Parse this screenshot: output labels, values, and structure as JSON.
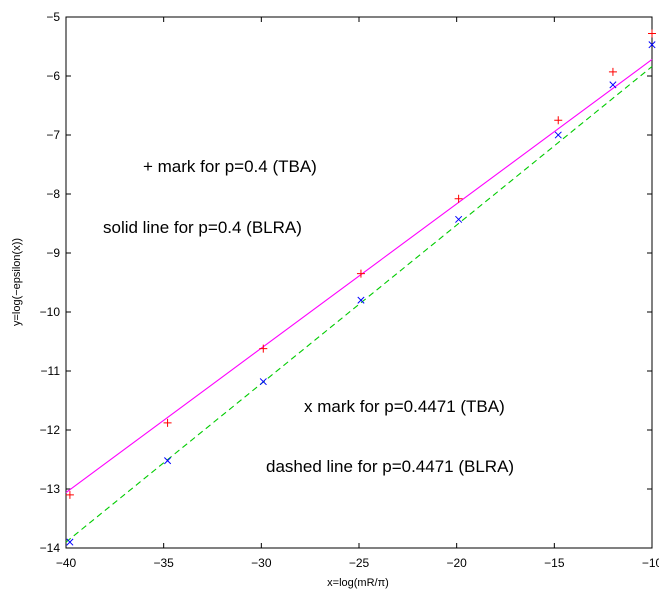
{
  "chart_data": {
    "type": "line",
    "title": "",
    "xlabel": "x=log(mR/π)",
    "ylabel": "y=log(−epsilon(x))",
    "xlim": [
      -40,
      -10
    ],
    "ylim": [
      -14,
      -5
    ],
    "xticks": [
      -40,
      -35,
      -30,
      -25,
      -20,
      -15,
      -10
    ],
    "yticks": [
      -14,
      -13,
      -12,
      -11,
      -10,
      -9,
      -8,
      -7,
      -6,
      -5
    ],
    "xtick_labels": [
      "−40",
      "−35",
      "−30",
      "−25",
      "−20",
      "−15",
      "−10"
    ],
    "ytick_labels": [
      "−14",
      "−13",
      "−12",
      "−11",
      "−10",
      "−9",
      "−8",
      "−7",
      "−6",
      "−5"
    ],
    "grid": false,
    "series": [
      {
        "kind": "line",
        "style": "solid",
        "color": "#ff00ff",
        "x": [
          -40,
          -10
        ],
        "y": [
          -13.06,
          -5.72
        ]
      },
      {
        "kind": "line",
        "style": "dashed",
        "color": "#00cc00",
        "x": [
          -40,
          -10
        ],
        "y": [
          -13.9,
          -5.84
        ]
      },
      {
        "kind": "marker",
        "marker": "+",
        "color": "#ff0000",
        "x": [
          -39.8,
          -34.8,
          -29.9,
          -24.9,
          -19.9,
          -14.8,
          -12.0,
          -10.0
        ],
        "y": [
          -13.1,
          -11.88,
          -10.62,
          -9.35,
          -8.08,
          -6.75,
          -5.93,
          -5.28
        ]
      },
      {
        "kind": "marker",
        "marker": "x",
        "color": "#0000ff",
        "x": [
          -39.8,
          -34.8,
          -29.9,
          -24.9,
          -19.9,
          -14.8,
          -12.0,
          -10.0
        ],
        "y": [
          -13.9,
          -12.52,
          -11.18,
          -9.8,
          -8.43,
          -7.0,
          -6.15,
          -5.47
        ]
      }
    ],
    "annotations": [
      {
        "text": "+ mark for p=0.4 (TBA)"
      },
      {
        "text": "solid line for p=0.4 (BLRA)"
      },
      {
        "text": "x mark for p=0.4471 (TBA)"
      },
      {
        "text": "dashed line for p=0.4471 (BLRA)"
      }
    ]
  }
}
